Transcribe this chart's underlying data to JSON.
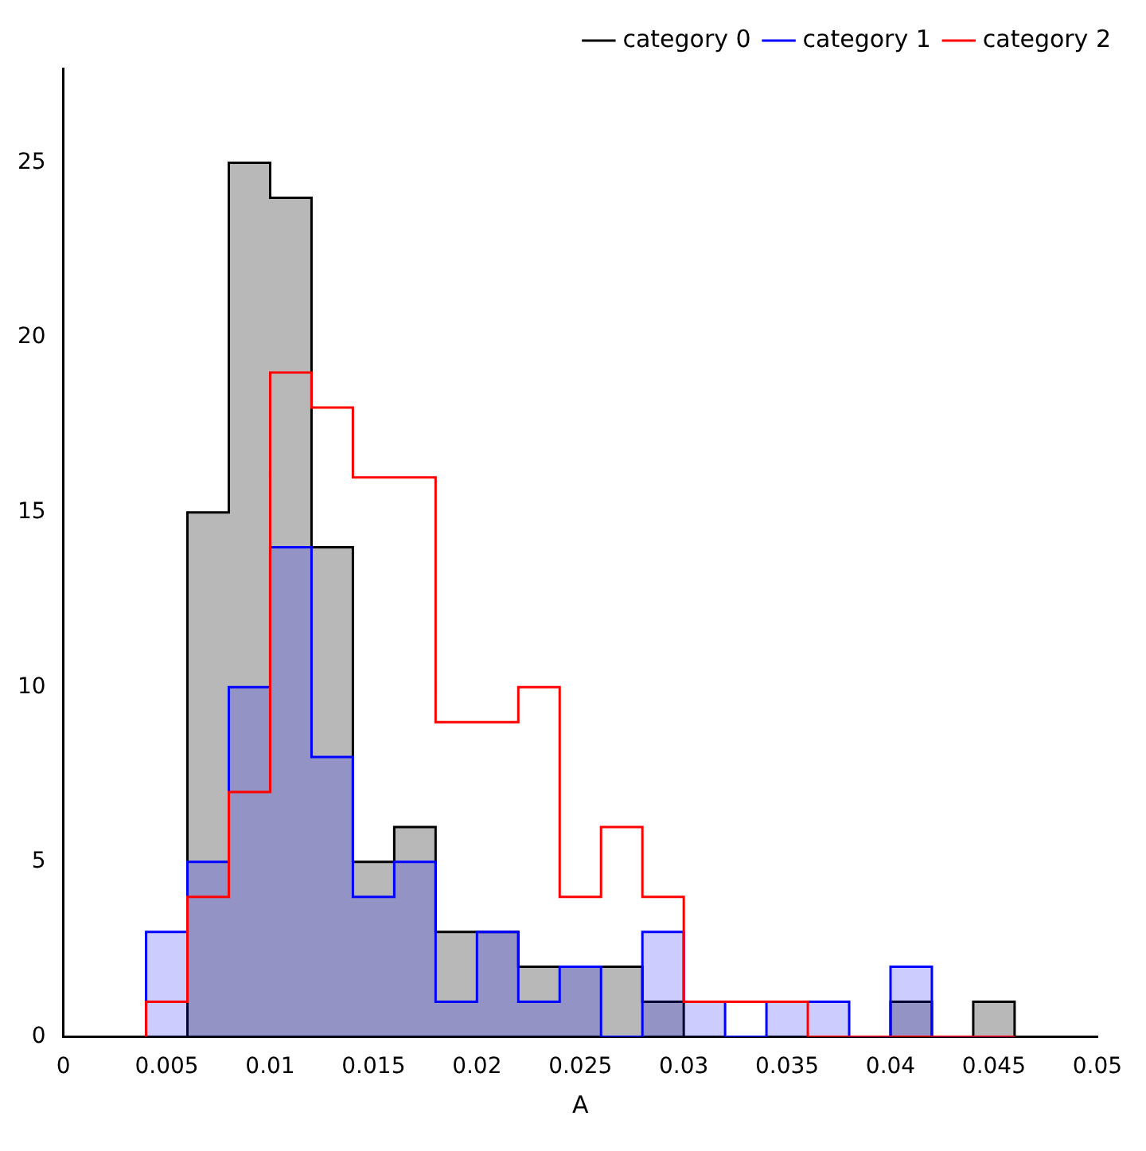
{
  "chart_data": {
    "type": "histogram",
    "xlabel": "A",
    "bins": [
      0.004,
      0.006,
      0.008,
      0.01,
      0.012,
      0.014,
      0.016,
      0.018,
      0.02,
      0.022,
      0.024,
      0.026,
      0.028,
      0.03,
      0.032,
      0.034,
      0.036,
      0.038,
      0.04,
      0.042,
      0.044,
      0.046
    ],
    "series": [
      {
        "name": "category 0",
        "color": "#000000",
        "values": [
          0,
          15,
          25,
          24,
          14,
          5,
          6,
          3,
          3,
          2,
          2,
          2,
          1,
          0,
          0,
          0,
          0,
          0,
          1,
          0,
          1
        ]
      },
      {
        "name": "category 1",
        "color": "#0000ff",
        "values": [
          3,
          5,
          10,
          14,
          8,
          4,
          5,
          1,
          3,
          1,
          2,
          0,
          3,
          1,
          0,
          1,
          1,
          0,
          2,
          0,
          0
        ]
      },
      {
        "name": "category 2",
        "color": "#ff0000",
        "values": [
          1,
          4,
          7,
          19,
          18,
          16,
          16,
          9,
          9,
          10,
          4,
          6,
          4,
          1,
          1,
          1,
          0,
          0,
          0,
          0,
          0
        ]
      }
    ],
    "xlim": [
      0,
      0.05
    ],
    "xticks": [
      0,
      0.005,
      0.01,
      0.015,
      0.02,
      0.025,
      0.03,
      0.035,
      0.04,
      0.045,
      0.05
    ],
    "ylim": [
      0,
      27.7
    ],
    "yticks": [
      0,
      5,
      10,
      15,
      20,
      25
    ],
    "grid": false,
    "legend": "top right"
  }
}
